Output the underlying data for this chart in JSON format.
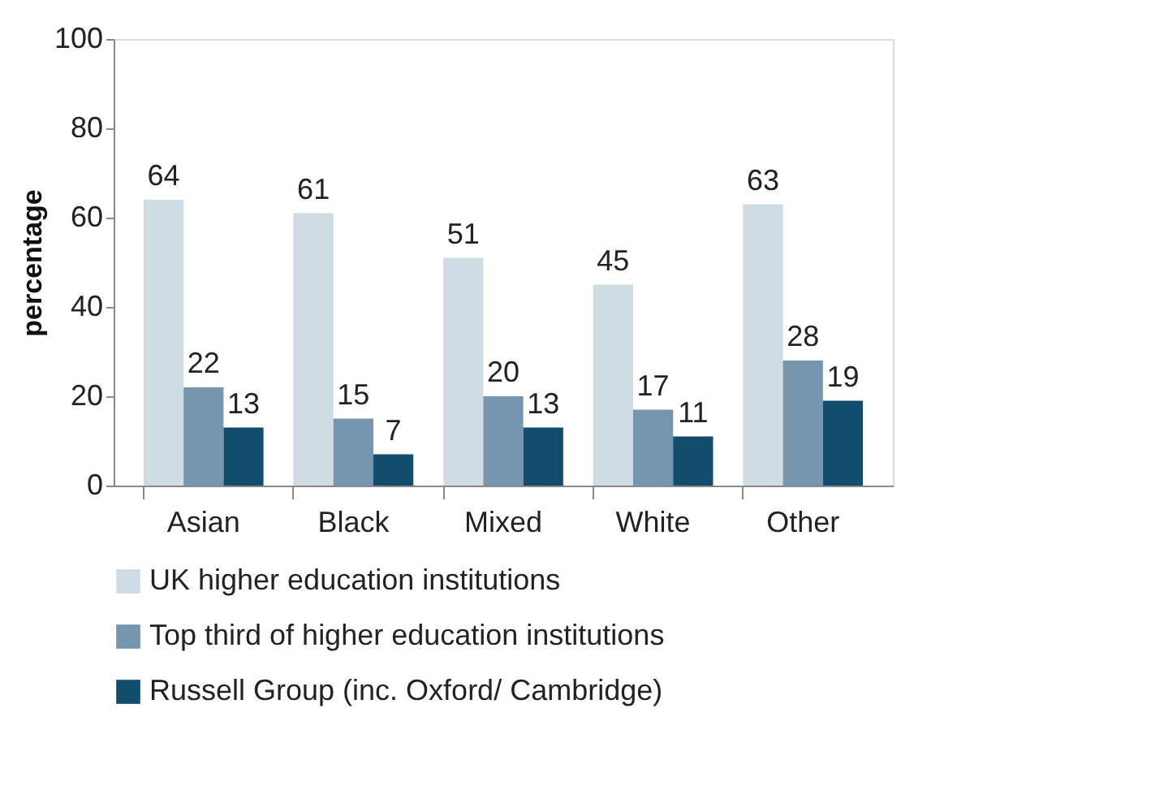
{
  "chart_data": {
    "type": "bar",
    "ylabel": "percentage",
    "categories": [
      "Asian",
      "Black",
      "Mixed",
      "White",
      "Other"
    ],
    "series": [
      {
        "name": "UK higher education institutions",
        "color": "#cfdce4",
        "values": [
          64,
          61,
          51,
          45,
          63
        ]
      },
      {
        "name": "Top third of higher education institutions",
        "color": "#7596ae",
        "values": [
          22,
          15,
          20,
          17,
          28
        ]
      },
      {
        "name": "Russell Group (inc. Oxford/ Cambridge)",
        "color": "#134d6e",
        "values": [
          13,
          7,
          13,
          11,
          19
        ]
      }
    ],
    "ylim": [
      0,
      100
    ],
    "yticks": [
      0,
      20,
      40,
      60,
      80,
      100
    ],
    "grid": false,
    "legend": "bottom",
    "data_labels": true
  }
}
